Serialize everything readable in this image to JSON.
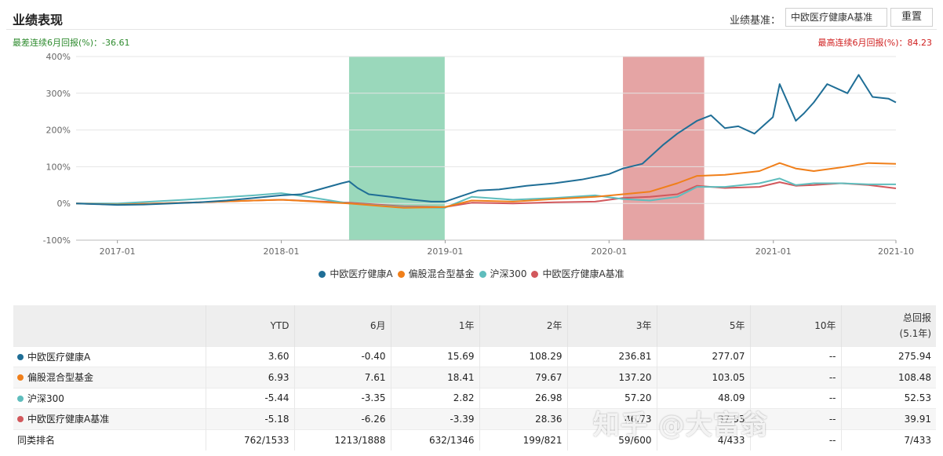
{
  "header": {
    "title": "业绩表现",
    "benchmark_label": "业绩基准：",
    "benchmark_value": "中欧医疗健康A基准",
    "reset_label": "重置"
  },
  "stats": {
    "worst": "最差连续6月回报(%)：-36.61",
    "best": "最高连续6月回报(%)：84.23"
  },
  "colors": {
    "fund": "#1f6e96",
    "peer": "#f07f1a",
    "hs300": "#5fbdbd",
    "bench": "#d2585c",
    "worst_band": "#8fd4b4",
    "best_band": "#e29a9a"
  },
  "chart_data": {
    "type": "line",
    "y_unit": "%",
    "ylim": [
      -100,
      400
    ],
    "y_ticks": [
      -100,
      0,
      100,
      200,
      300,
      400
    ],
    "y_tick_labels": [
      "-100%",
      "0%",
      "100%",
      "200%",
      "300%",
      "400%"
    ],
    "xlim": [
      "2016-10-01",
      "2021-10-01"
    ],
    "x_ticks": [
      "2017-01",
      "2018-01",
      "2019-01",
      "2020-01",
      "2021-01",
      "2021-10"
    ],
    "bands": [
      {
        "kind": "worst",
        "start": "2018-06-01",
        "end": "2018-12-31"
      },
      {
        "kind": "best",
        "start": "2020-02-01",
        "end": "2020-07-31"
      }
    ],
    "series": [
      {
        "name": "中欧医疗健康A",
        "color": "#1f6e96",
        "x": [
          "2016-10-01",
          "2016-11-15",
          "2017-01-01",
          "2017-03-01",
          "2017-05-01",
          "2017-07-01",
          "2017-09-01",
          "2017-11-01",
          "2018-01-01",
          "2018-02-15",
          "2018-04-01",
          "2018-05-15",
          "2018-06-01",
          "2018-06-20",
          "2018-07-15",
          "2018-09-01",
          "2018-10-20",
          "2018-12-01",
          "2019-01-01",
          "2019-02-01",
          "2019-03-15",
          "2019-05-01",
          "2019-07-01",
          "2019-09-01",
          "2019-11-01",
          "2020-01-01",
          "2020-02-01",
          "2020-03-15",
          "2020-05-01",
          "2020-06-01",
          "2020-07-15",
          "2020-08-15",
          "2020-09-15",
          "2020-10-15",
          "2020-11-20",
          "2020-12-31",
          "2021-01-15",
          "2021-02-20",
          "2021-03-10",
          "2021-04-01",
          "2021-05-01",
          "2021-06-15",
          "2021-07-10",
          "2021-08-10",
          "2021-09-15",
          "2021-10-01"
        ],
        "values": [
          0,
          -2,
          -4,
          -3,
          0,
          3,
          8,
          15,
          22,
          25,
          40,
          55,
          60,
          42,
          25,
          18,
          10,
          5,
          5,
          18,
          35,
          38,
          48,
          55,
          65,
          80,
          95,
          108,
          160,
          190,
          225,
          240,
          205,
          210,
          190,
          235,
          325,
          225,
          245,
          275,
          325,
          300,
          350,
          290,
          285,
          275
        ]
      },
      {
        "name": "偏股混合型基金",
        "color": "#f07f1a",
        "x": [
          "2016-10-01",
          "2017-01-01",
          "2017-06-01",
          "2017-11-01",
          "2018-01-01",
          "2018-06-01",
          "2018-10-01",
          "2018-12-31",
          "2019-03-01",
          "2019-06-01",
          "2019-09-01",
          "2019-12-01",
          "2020-02-01",
          "2020-04-01",
          "2020-06-01",
          "2020-07-15",
          "2020-09-15",
          "2020-12-01",
          "2021-01-15",
          "2021-02-20",
          "2021-04-01",
          "2021-06-01",
          "2021-08-01",
          "2021-10-01"
        ],
        "values": [
          0,
          -3,
          2,
          8,
          10,
          0,
          -12,
          -10,
          8,
          5,
          12,
          18,
          25,
          32,
          55,
          75,
          78,
          88,
          110,
          95,
          88,
          98,
          110,
          108
        ]
      },
      {
        "name": "沪深300",
        "color": "#5fbdbd",
        "x": [
          "2016-10-01",
          "2017-01-01",
          "2017-06-01",
          "2017-11-01",
          "2018-01-01",
          "2018-03-01",
          "2018-06-01",
          "2018-10-01",
          "2018-12-31",
          "2019-03-01",
          "2019-06-01",
          "2019-09-01",
          "2019-12-01",
          "2020-02-01",
          "2020-04-01",
          "2020-06-01",
          "2020-07-15",
          "2020-09-15",
          "2020-12-01",
          "2021-01-15",
          "2021-02-20",
          "2021-04-01",
          "2021-06-01",
          "2021-08-01",
          "2021-10-01"
        ],
        "values": [
          0,
          0,
          10,
          22,
          28,
          18,
          0,
          -10,
          -12,
          18,
          10,
          15,
          22,
          12,
          8,
          18,
          45,
          45,
          55,
          68,
          50,
          55,
          55,
          52,
          52
        ]
      },
      {
        "name": "中欧医疗健康A基准",
        "color": "#d2585c",
        "x": [
          "2016-10-01",
          "2017-01-01",
          "2017-06-01",
          "2017-11-01",
          "2018-01-01",
          "2018-06-01",
          "2018-10-01",
          "2018-12-31",
          "2019-03-01",
          "2019-06-01",
          "2019-09-01",
          "2019-12-01",
          "2020-02-01",
          "2020-04-01",
          "2020-06-01",
          "2020-07-15",
          "2020-09-15",
          "2020-12-01",
          "2021-01-15",
          "2021-02-20",
          "2021-04-01",
          "2021-06-01",
          "2021-08-01",
          "2021-10-01"
        ],
        "values": [
          0,
          -3,
          2,
          8,
          10,
          2,
          -8,
          -10,
          2,
          0,
          3,
          5,
          15,
          18,
          25,
          48,
          42,
          45,
          58,
          48,
          50,
          55,
          50,
          41
        ]
      }
    ]
  },
  "table": {
    "headers": [
      "",
      "YTD",
      "6月",
      "1年",
      "2年",
      "3年",
      "5年",
      "10年",
      "总回报\n(5.1年)"
    ],
    "rows": [
      {
        "name": "中欧医疗健康A",
        "color": "#1f6e96",
        "values": [
          "3.60",
          "-0.40",
          "15.69",
          "108.29",
          "236.81",
          "277.07",
          "--",
          "275.94"
        ]
      },
      {
        "name": "偏股混合型基金",
        "color": "#f07f1a",
        "values": [
          "6.93",
          "7.61",
          "18.41",
          "79.67",
          "137.20",
          "103.05",
          "--",
          "108.48"
        ]
      },
      {
        "name": "沪深300",
        "color": "#5fbdbd",
        "values": [
          "-5.44",
          "-3.35",
          "2.82",
          "26.98",
          "57.20",
          "48.09",
          "--",
          "52.53"
        ]
      },
      {
        "name": "中欧医疗健康A基准",
        "color": "#d2585c",
        "values": [
          "-5.18",
          "-6.26",
          "-3.39",
          "28.36",
          "46.73",
          "37.33",
          "--",
          "39.91"
        ]
      },
      {
        "name": "同类排名",
        "color": "",
        "values": [
          "762/1533",
          "1213/1888",
          "632/1346",
          "199/821",
          "59/600",
          "4/433",
          "--",
          "7/433"
        ]
      }
    ]
  },
  "watermark": "知乎 @大富翁"
}
